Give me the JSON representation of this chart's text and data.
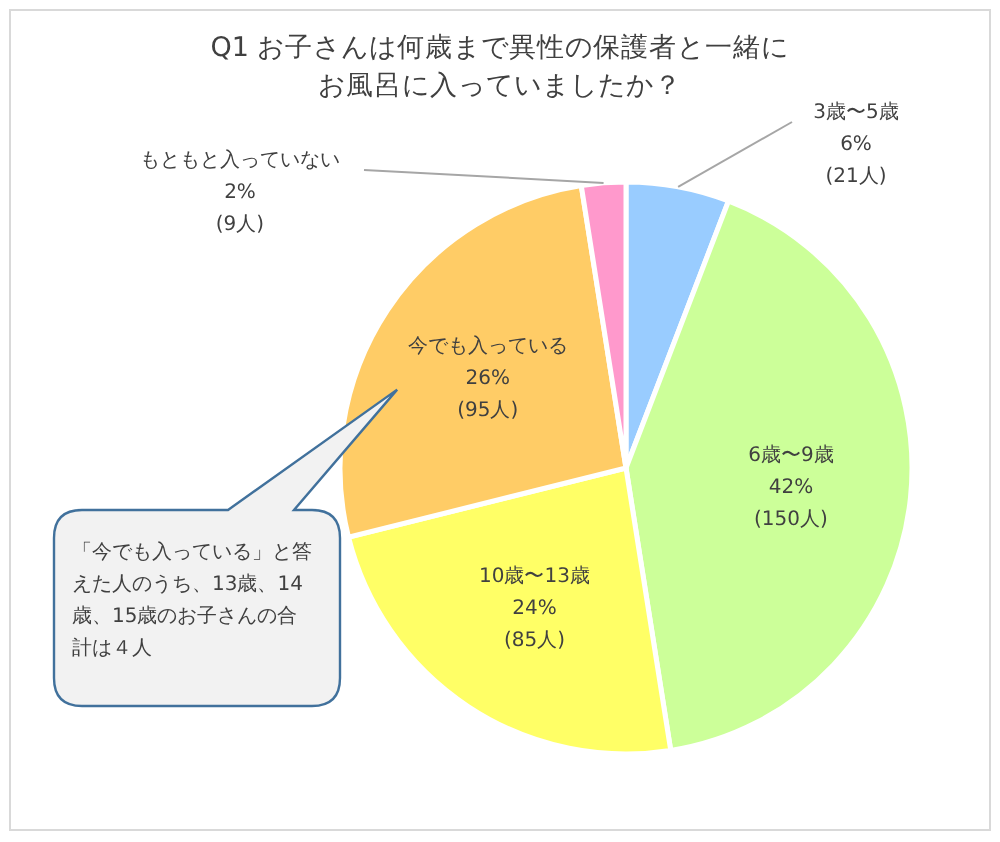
{
  "chart_data": {
    "type": "pie",
    "title": "Q1 お子さんは何歳まで異性の保護者と一緒にお風呂に入っていましたか？",
    "categories": [
      "3歳〜5歳",
      "6歳〜9歳",
      "10歳〜13歳",
      "今でも入っている",
      "もともと入っていない"
    ],
    "values": [
      21,
      150,
      85,
      95,
      9
    ],
    "value_labels": [
      "6%\n(21人)",
      "42%\n(150人)",
      "24%\n(85人)",
      "26%\n(95人)",
      "2%\n(9人)"
    ],
    "colors": [
      "#99ccff",
      "#ccff99",
      "#ffff66",
      "#ffcc66",
      "#ff99cc"
    ],
    "annotations": [
      {
        "text": "「今でも入っている」と答えた人のうち、13歳、14歳、15歳のお子さんの合計は４人",
        "x": "今でも入っている"
      }
    ]
  }
}
